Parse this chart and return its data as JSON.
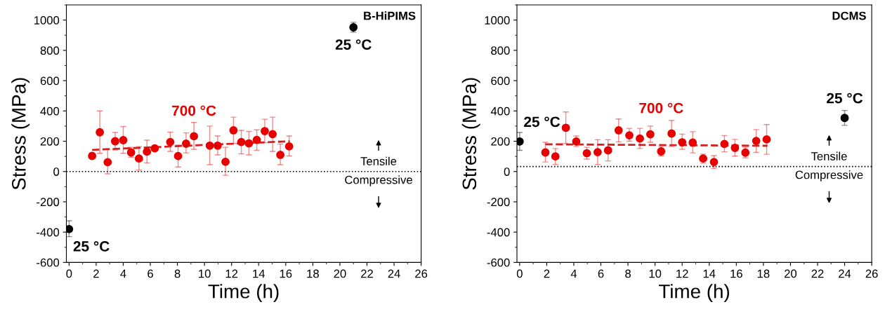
{
  "chart_data": [
    {
      "type": "scatter",
      "title": "B-HiPIMS",
      "xlabel": "Time (h)",
      "ylabel": "Stress (MPa)",
      "xlim": [
        -0.2,
        26
      ],
      "ylim": [
        -600,
        1100
      ],
      "xticks": [
        0,
        2,
        4,
        6,
        8,
        10,
        12,
        14,
        16,
        18,
        20,
        22,
        24,
        26
      ],
      "yticks": [
        -600,
        -400,
        -200,
        0,
        200,
        400,
        600,
        800,
        1000
      ],
      "grid": false,
      "legend": false,
      "marker": "circle",
      "series": [
        {
          "name": "700 °C",
          "color": "#e60000",
          "x": [
            1.7,
            2.27,
            2.85,
            3.4,
            4.0,
            4.58,
            5.16,
            5.75,
            6.33,
            7.47,
            8.05,
            8.64,
            9.22,
            10.39,
            10.97,
            11.55,
            12.14,
            12.72,
            13.28,
            13.86,
            14.45,
            15.03,
            15.6,
            16.25
          ],
          "values": [
            103,
            259,
            62,
            200,
            207,
            126,
            86,
            131,
            153,
            195,
            102,
            184,
            233,
            171,
            171,
            64,
            272,
            195,
            186,
            209,
            267,
            247,
            110,
            166
          ],
          "errors": [
            null,
            [
              120,
              400
            ],
            [
              -15,
              145
            ],
            [
              142,
              258
            ],
            [
              120,
              297
            ],
            [
              95,
              160
            ],
            [
              10,
              165
            ],
            [
              57,
              207
            ],
            null,
            [
              133,
              260
            ],
            [
              30,
              175
            ],
            [
              123,
              255
            ],
            [
              147,
              324
            ],
            [
              45,
              300
            ],
            [
              110,
              235
            ],
            [
              -25,
              160
            ],
            [
              185,
              359
            ],
            [
              117,
              272
            ],
            [
              110,
              265
            ],
            [
              140,
              275
            ],
            [
              190,
              345
            ],
            [
              133,
              359
            ],
            [
              45,
              181
            ],
            [
              103,
              235
            ]
          ]
        },
        {
          "color": "#000000",
          "x": [
            0,
            21
          ],
          "values": [
            -380,
            952
          ],
          "errors": [
            [
              -430,
              -325
            ],
            [
              920,
              985
            ]
          ]
        },
        {
          "type": "line",
          "color": "#d62020",
          "line_style": "dashed",
          "marker": "none",
          "x": [
            1.7,
            16.3
          ],
          "values": [
            143,
            200
          ]
        }
      ],
      "ref_lines": [
        {
          "axis": "y",
          "value": 0,
          "color": "#000000",
          "line_style": "dotted"
        }
      ],
      "annotations": [
        {
          "text": "25 °C",
          "x": 0,
          "y": -380
        },
        {
          "text": "25 °C",
          "x": 21,
          "y": 952
        },
        "Tensile",
        "Compressive"
      ]
    },
    {
      "type": "scatter",
      "title": "DCMS",
      "xlabel": "Time (h)",
      "ylabel": "Stress (MPa)",
      "xlim": [
        -0.2,
        26
      ],
      "ylim": [
        -600,
        1100
      ],
      "xticks": [
        0,
        2,
        4,
        6,
        8,
        10,
        12,
        14,
        16,
        18,
        20,
        22,
        24,
        26
      ],
      "yticks": [
        -600,
        -400,
        -200,
        0,
        200,
        400,
        600,
        800,
        1000
      ],
      "grid": false,
      "legend": false,
      "marker": "circle",
      "series": [
        {
          "name": "700 °C",
          "color": "#e60000",
          "x": [
            1.9,
            2.64,
            3.41,
            4.18,
            4.96,
            5.76,
            6.53,
            7.31,
            8.1,
            8.88,
            9.65,
            10.45,
            11.22,
            12.0,
            12.78,
            13.55,
            14.35,
            15.12,
            15.9,
            16.67,
            17.47,
            18.24
          ],
          "values": [
            126,
            100,
            289,
            198,
            121,
            128,
            140,
            272,
            239,
            218,
            246,
            133,
            251,
            193,
            191,
            86,
            63,
            182,
            156,
            125,
            202,
            212
          ],
          "errors": [
            [
              63,
              193
            ],
            [
              47,
              152
            ],
            [
              184,
              393
            ],
            [
              165,
              235
            ],
            [
              82,
              160
            ],
            [
              47,
              210
            ],
            [
              70,
              210
            ],
            [
              196,
              347
            ],
            [
              200,
              285
            ],
            [
              152,
              285
            ],
            [
              193,
              300
            ],
            [
              103,
              165
            ],
            [
              165,
              338
            ],
            [
              147,
              247
            ],
            [
              123,
              263
            ],
            [
              55,
              115
            ],
            [
              20,
              105
            ],
            [
              130,
              237
            ],
            [
              102,
              212
            ],
            [
              90,
              160
            ],
            [
              126,
              277
            ],
            [
              114,
              310
            ]
          ]
        },
        {
          "color": "#000000",
          "x": [
            0,
            24
          ],
          "values": [
            198,
            354
          ],
          "errors": [
            [
              140,
              258
            ],
            [
              305,
              403
            ]
          ]
        },
        {
          "type": "line",
          "color": "#d62020",
          "line_style": "dashed",
          "marker": "none",
          "x": [
            1.9,
            18.3
          ],
          "values": [
            180,
            170
          ]
        }
      ],
      "ref_lines": [
        {
          "axis": "y",
          "value": 33,
          "color": "#000000",
          "line_style": "dotted"
        }
      ],
      "annotations": [
        {
          "text": "25 °C",
          "x": 0,
          "y": 198
        },
        {
          "text": "25 °C",
          "x": 24,
          "y": 354
        },
        "Tensile",
        "Compressive"
      ]
    }
  ]
}
